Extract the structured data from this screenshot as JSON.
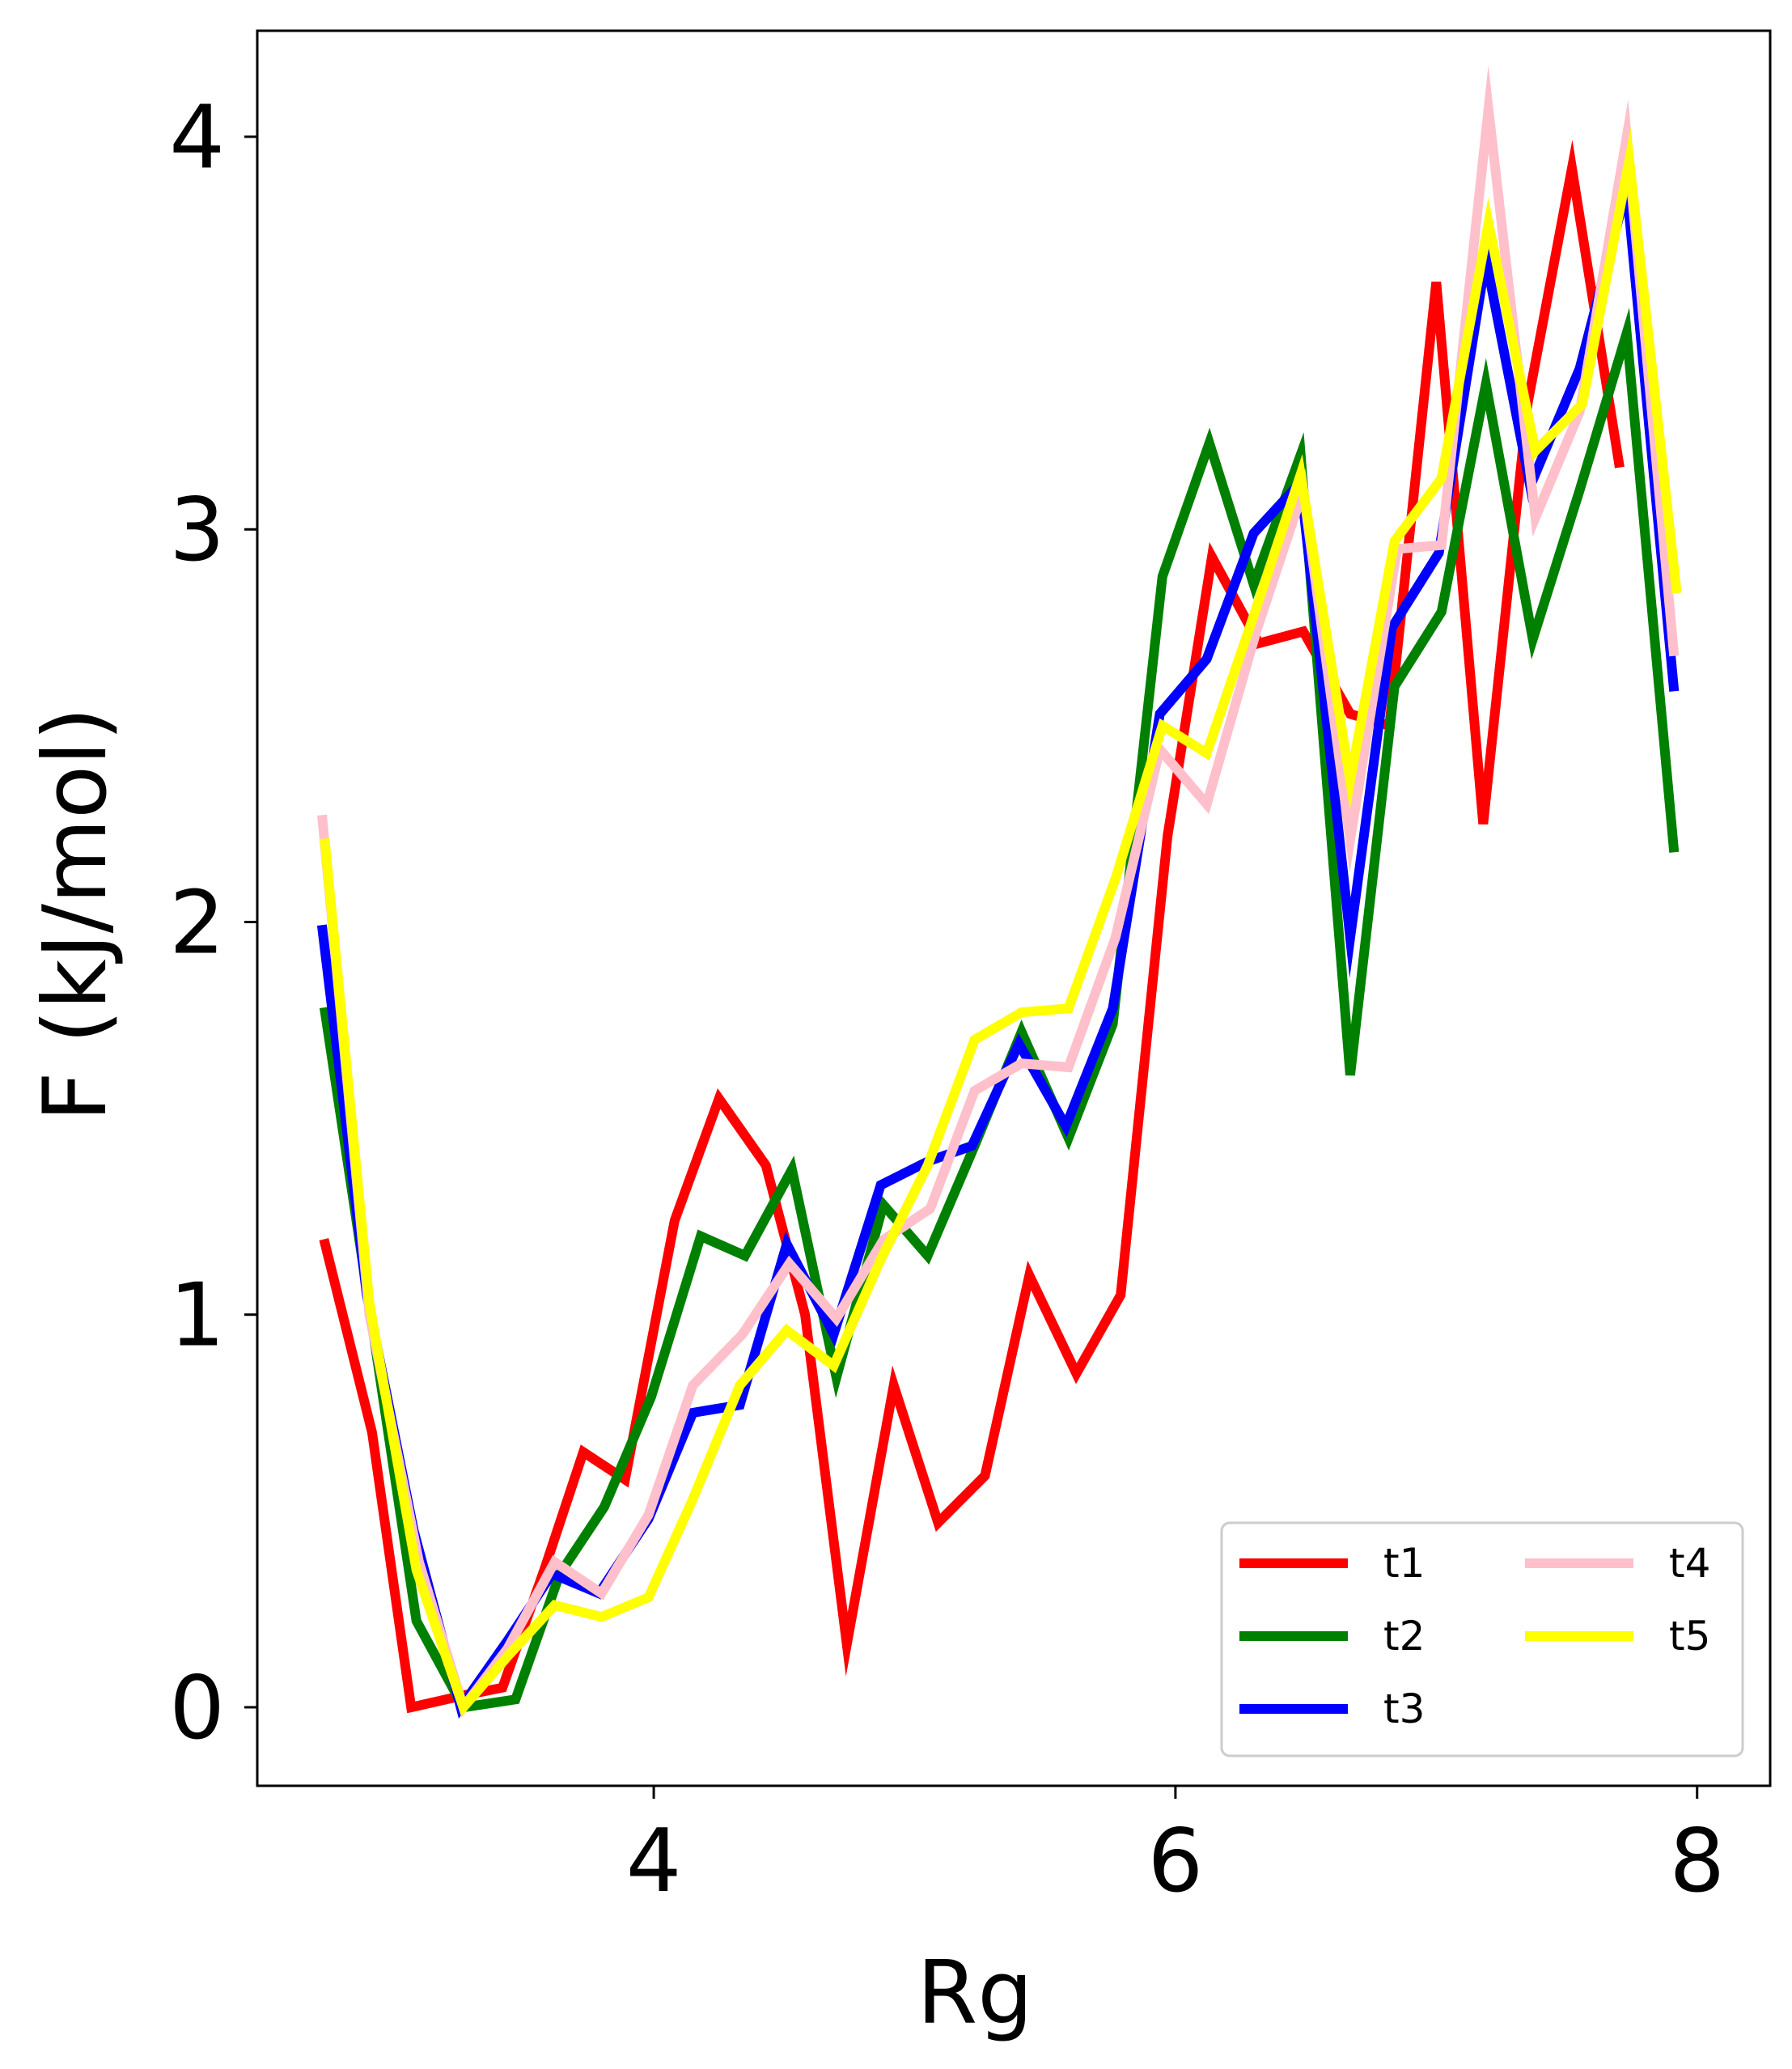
{
  "chart_data": {
    "type": "line",
    "title": "",
    "xlabel": "Rg",
    "ylabel": "F (kJ/mol)",
    "xlim": [
      2.48,
      8.28
    ],
    "ylim": [
      -0.2,
      4.27
    ],
    "xticks": [
      4,
      6,
      8
    ],
    "yticks": [
      0,
      1,
      2,
      3,
      4
    ],
    "grid": false,
    "legend": {
      "placement": "lower-right",
      "columns": 2
    },
    "series": [
      {
        "name": "t1",
        "color": "#ff0000",
        "x": [
          2.74,
          2.92,
          3.07,
          3.27,
          3.42,
          3.58,
          3.73,
          3.89,
          4.08,
          4.25,
          4.43,
          4.58,
          4.74,
          4.92,
          5.09,
          5.27,
          5.44,
          5.62,
          5.79,
          5.97,
          6.14,
          6.32,
          6.49,
          6.67,
          6.82,
          7.0,
          7.18,
          7.35,
          7.52,
          7.7
        ],
        "y": [
          1.18,
          0.7,
          0.0,
          0.03,
          0.05,
          0.35,
          0.65,
          0.58,
          1.24,
          1.55,
          1.38,
          1.0,
          0.16,
          0.82,
          0.47,
          0.59,
          1.1,
          0.85,
          1.05,
          2.22,
          2.93,
          2.71,
          2.74,
          2.53,
          2.5,
          3.63,
          2.25,
          3.32,
          3.92,
          3.17
        ]
      },
      {
        "name": "t2",
        "color": "#008000",
        "x": [
          2.74,
          2.91,
          3.09,
          3.27,
          3.47,
          3.64,
          3.81,
          3.99,
          4.18,
          4.35,
          4.53,
          4.7,
          4.88,
          5.05,
          5.23,
          5.41,
          5.59,
          5.76,
          5.95,
          6.13,
          6.3,
          6.48,
          6.67,
          6.84,
          7.02,
          7.19,
          7.37,
          7.55,
          7.73,
          7.91
        ],
        "y": [
          1.77,
          1.02,
          0.22,
          0.0,
          0.02,
          0.34,
          0.51,
          0.79,
          1.2,
          1.15,
          1.37,
          0.84,
          1.28,
          1.15,
          1.43,
          1.72,
          1.45,
          1.74,
          2.88,
          3.22,
          2.86,
          3.19,
          1.61,
          2.6,
          2.79,
          3.37,
          2.72,
          3.1,
          3.5,
          2.19
        ]
      },
      {
        "name": "t3",
        "color": "#0000ff",
        "x": [
          2.73,
          2.9,
          3.08,
          3.26,
          3.44,
          3.61,
          3.79,
          3.98,
          4.15,
          4.33,
          4.51,
          4.69,
          4.87,
          5.05,
          5.22,
          5.4,
          5.58,
          5.76,
          5.94,
          6.12,
          6.3,
          6.48,
          6.67,
          6.83,
          7.01,
          7.19,
          7.36,
          7.55,
          7.73,
          7.91
        ],
        "y": [
          1.98,
          1.05,
          0.45,
          0.0,
          0.17,
          0.34,
          0.29,
          0.48,
          0.75,
          0.77,
          1.18,
          0.95,
          1.33,
          1.39,
          1.43,
          1.69,
          1.48,
          1.78,
          2.53,
          2.67,
          2.99,
          3.12,
          1.96,
          2.75,
          2.94,
          3.69,
          3.11,
          3.41,
          3.87,
          2.6
        ]
      },
      {
        "name": "t4",
        "color": "#ffc0cb",
        "x": [
          2.73,
          2.91,
          3.1,
          3.27,
          3.44,
          3.62,
          3.8,
          3.98,
          4.15,
          4.34,
          4.52,
          4.7,
          4.88,
          5.06,
          5.23,
          5.41,
          5.59,
          5.77,
          5.94,
          6.12,
          6.31,
          6.49,
          6.67,
          6.85,
          7.02,
          7.2,
          7.38,
          7.55,
          7.73,
          7.91
        ],
        "y": [
          2.26,
          1.0,
          0.37,
          0.0,
          0.15,
          0.37,
          0.29,
          0.49,
          0.82,
          0.95,
          1.13,
          0.99,
          1.19,
          1.27,
          1.57,
          1.64,
          1.63,
          1.96,
          2.44,
          2.3,
          2.74,
          3.1,
          2.21,
          2.95,
          2.96,
          4.07,
          3.03,
          3.3,
          4.0,
          2.69
        ]
      },
      {
        "name": "t5",
        "color": "#ffff00",
        "x": [
          2.74,
          2.91,
          3.09,
          3.27,
          3.44,
          3.62,
          3.8,
          3.98,
          4.15,
          4.33,
          4.51,
          4.69,
          4.87,
          5.05,
          5.23,
          5.41,
          5.59,
          5.77,
          5.95,
          6.12,
          6.3,
          6.48,
          6.67,
          6.84,
          7.02,
          7.2,
          7.38,
          7.56,
          7.74,
          7.92
        ],
        "y": [
          2.2,
          1.03,
          0.35,
          0.0,
          0.13,
          0.26,
          0.23,
          0.28,
          0.53,
          0.82,
          0.96,
          0.87,
          1.14,
          1.38,
          1.7,
          1.77,
          1.78,
          2.11,
          2.5,
          2.43,
          2.78,
          3.14,
          2.36,
          2.97,
          3.13,
          3.78,
          3.2,
          3.32,
          3.94,
          2.85
        ]
      }
    ]
  }
}
